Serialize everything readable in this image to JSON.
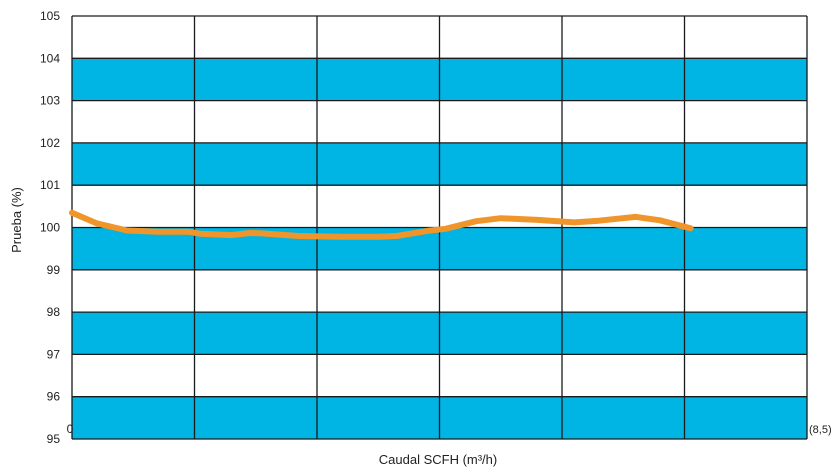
{
  "chart_data": {
    "type": "line",
    "xlabel": "Caudal SCFH (m³/h)",
    "ylabel": "Prueba (%)",
    "x_tick_labels": [
      "0",
      "(8,5)"
    ],
    "ylim": [
      95,
      105
    ],
    "y_ticks": [
      105,
      104,
      103,
      102,
      101,
      100,
      99,
      98,
      97,
      96,
      95
    ],
    "x_range": [
      0,
      6
    ],
    "grid": true,
    "band_color": "#00b4e4",
    "line_color": "#f0952a",
    "series": [
      {
        "x": [
          0.0,
          0.2,
          0.45,
          0.7,
          0.95,
          1.05,
          1.3,
          1.45,
          1.55,
          1.85,
          2.2,
          2.5,
          2.65,
          2.9,
          3.05,
          3.3,
          3.5,
          3.8,
          4.1,
          4.3,
          4.6,
          4.8,
          5.05
        ],
        "y": [
          100.35,
          100.1,
          99.93,
          99.9,
          99.9,
          99.85,
          99.82,
          99.87,
          99.86,
          99.8,
          99.78,
          99.78,
          99.8,
          99.92,
          99.97,
          100.15,
          100.22,
          100.18,
          100.12,
          100.16,
          100.25,
          100.17,
          99.98
        ]
      }
    ]
  }
}
